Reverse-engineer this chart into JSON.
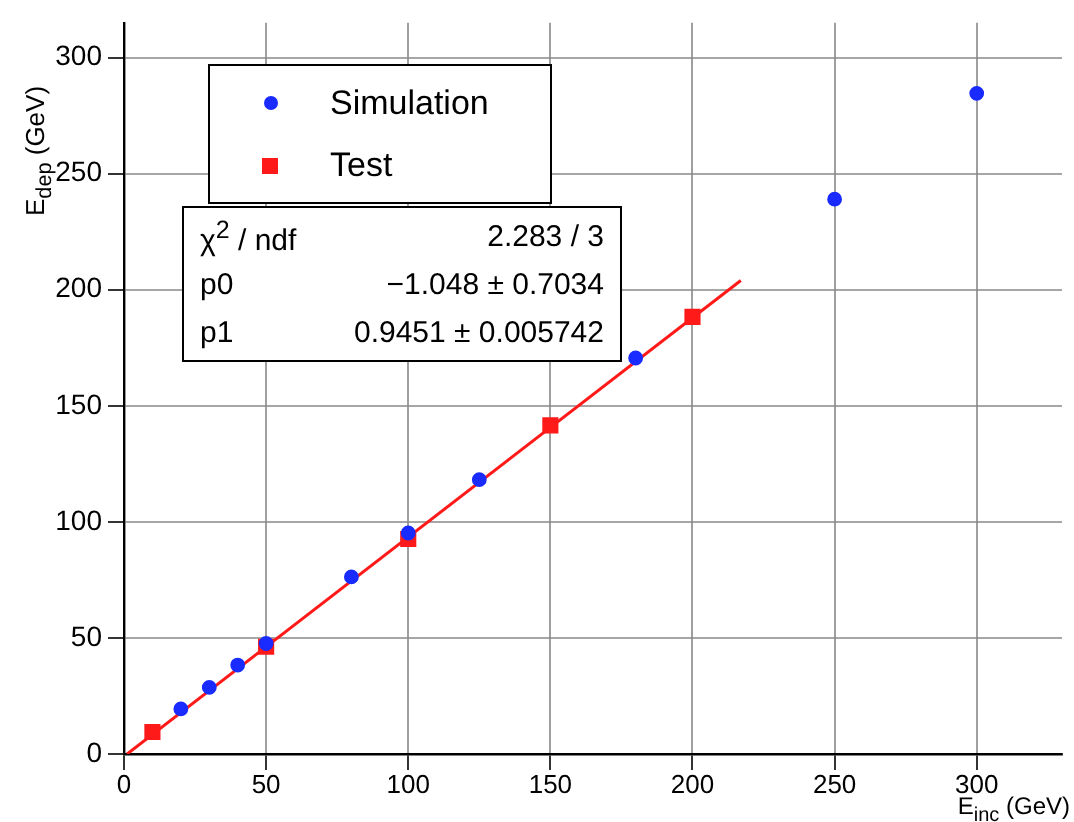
{
  "chart_data": {
    "type": "scatter",
    "xlabel": "E$_{inc}$ (GeV)",
    "ylabel": "E$_{dep}$ (GeV)",
    "xlim": [
      0,
      330
    ],
    "xticks": [
      0,
      50,
      100,
      150,
      200,
      250,
      300
    ],
    "ylim": [
      0,
      315
    ],
    "yticks": [
      0,
      50,
      100,
      150,
      200,
      250,
      300
    ],
    "grid": true,
    "legend": "top left",
    "series": [
      {
        "name": "Simulation",
        "color": "#1a2bff",
        "marker": "circle",
        "x": [
          20,
          30,
          40,
          50,
          80,
          100,
          125,
          180,
          250,
          300
        ],
        "values": [
          19.4,
          28.7,
          38.3,
          47.6,
          76.3,
          95.2,
          118.2,
          170.6,
          239,
          284.6
        ]
      },
      {
        "name": "Test",
        "color": "#ff1a1a",
        "marker": "square",
        "x": [
          10,
          50,
          100,
          150,
          200
        ],
        "values": [
          9.5,
          46.2,
          92.6,
          141.6,
          188.3
        ]
      },
      {
        "type": "line",
        "color": "#ff1a1a",
        "x": [
          1.1,
          217
        ],
        "values": [
          0,
          204.0
        ]
      }
    ],
    "annotations": [
      "χ$^{2}$ / ndf\t2.283 / 3",
      "p0\t−1.048 ± 0.7034",
      "p1\t0.9451 ± 0.005742"
    ]
  }
}
